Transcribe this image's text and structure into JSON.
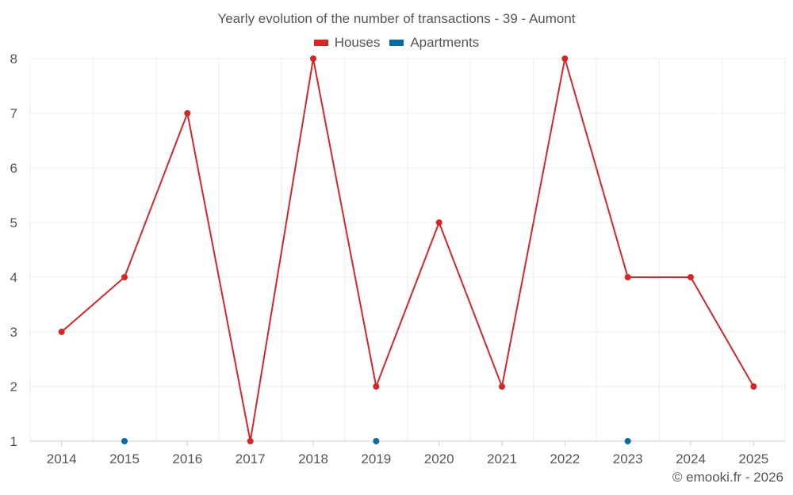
{
  "chart_data": {
    "type": "line",
    "title": "Yearly evolution of the number of transactions - 39 - Aumont",
    "xlabel": "",
    "ylabel": "",
    "categories": [
      "2014",
      "2015",
      "2016",
      "2017",
      "2018",
      "2019",
      "2020",
      "2021",
      "2022",
      "2023",
      "2024",
      "2025"
    ],
    "ylim": [
      1,
      8
    ],
    "yticks": [
      1,
      2,
      3,
      4,
      5,
      6,
      7,
      8
    ],
    "grid": true,
    "legend_position": "top-center",
    "series": [
      {
        "name": "Houses",
        "color": "#d62728",
        "values": [
          3,
          4,
          7,
          1,
          8,
          2,
          5,
          2,
          8,
          4,
          4,
          2
        ]
      },
      {
        "name": "Apartments",
        "color": "#0b6aa2",
        "values": [
          null,
          1,
          null,
          null,
          null,
          1,
          null,
          null,
          null,
          1,
          null,
          null
        ]
      }
    ]
  },
  "footer": {
    "credit": "© emooki.fr - 2026"
  }
}
